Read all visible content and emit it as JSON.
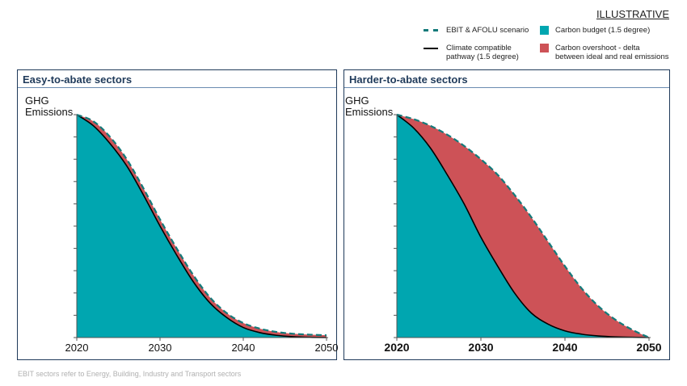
{
  "header": {
    "illustrative": "ILLUSTRATIVE"
  },
  "legend": {
    "ebit_scenario": "EBIT & AFOLU scenario",
    "climate_pathway": "Climate compatible\npathway (1.5 degree)",
    "carbon_budget": "Carbon budget (1.5 degree)",
    "carbon_overshoot": "Carbon overshoot - delta\nbetween ideal and real emissions"
  },
  "colors": {
    "carbon_budget": "#00a6b0",
    "carbon_overshoot": "#cd5257",
    "ebit_line": "#147a7a",
    "pathway_line": "#000000",
    "frame": "#1f3a5a"
  },
  "footnote": "EBIT sectors refer to Energy, Building, Industry and Transport sectors",
  "chart_data": [
    {
      "type": "area",
      "title": "Easy-to-abate sectors",
      "ylabel": "GHG\nEmissions",
      "xlabel": "",
      "x_ticks": [
        "2020",
        "2030",
        "2040",
        "2050"
      ],
      "xlim": [
        2020,
        2050
      ],
      "ylim": [
        0,
        1
      ],
      "series": [
        {
          "name": "Climate compatible pathway (1.5 degree)",
          "x": [
            2020,
            2022,
            2024,
            2026,
            2028,
            2030,
            2032,
            2034,
            2036,
            2038,
            2040,
            2042,
            2044,
            2046,
            2048,
            2050
          ],
          "y": [
            1.0,
            0.95,
            0.87,
            0.77,
            0.64,
            0.5,
            0.37,
            0.25,
            0.155,
            0.09,
            0.045,
            0.022,
            0.01,
            0.004,
            0.001,
            0.0
          ]
        },
        {
          "name": "EBIT & AFOLU scenario",
          "x": [
            2020,
            2022,
            2024,
            2026,
            2028,
            2030,
            2032,
            2034,
            2036,
            2038,
            2040,
            2042,
            2044,
            2046,
            2048,
            2050
          ],
          "y": [
            1.0,
            0.97,
            0.9,
            0.8,
            0.67,
            0.53,
            0.4,
            0.28,
            0.18,
            0.11,
            0.065,
            0.04,
            0.025,
            0.017,
            0.013,
            0.01
          ]
        }
      ]
    },
    {
      "type": "area",
      "title": "Harder-to-abate sectors",
      "ylabel": "GHG\nEmissions",
      "xlabel": "",
      "x_ticks": [
        "2020",
        "2030",
        "2040",
        "2050"
      ],
      "xlim": [
        2020,
        2050
      ],
      "ylim": [
        0,
        1
      ],
      "series": [
        {
          "name": "Climate compatible pathway (1.5 degree)",
          "x": [
            2020,
            2022,
            2024,
            2026,
            2028,
            2030,
            2032,
            2034,
            2036,
            2038,
            2040,
            2042,
            2044,
            2046,
            2048,
            2050
          ],
          "y": [
            1.0,
            0.94,
            0.85,
            0.73,
            0.6,
            0.45,
            0.32,
            0.2,
            0.11,
            0.06,
            0.03,
            0.015,
            0.007,
            0.003,
            0.001,
            0.0
          ]
        },
        {
          "name": "EBIT & AFOLU scenario",
          "x": [
            2020,
            2022,
            2024,
            2026,
            2028,
            2030,
            2032,
            2034,
            2036,
            2038,
            2040,
            2042,
            2044,
            2046,
            2048,
            2050
          ],
          "y": [
            1.0,
            0.98,
            0.95,
            0.91,
            0.86,
            0.8,
            0.73,
            0.64,
            0.54,
            0.43,
            0.32,
            0.22,
            0.14,
            0.08,
            0.035,
            0.0
          ]
        }
      ]
    }
  ]
}
